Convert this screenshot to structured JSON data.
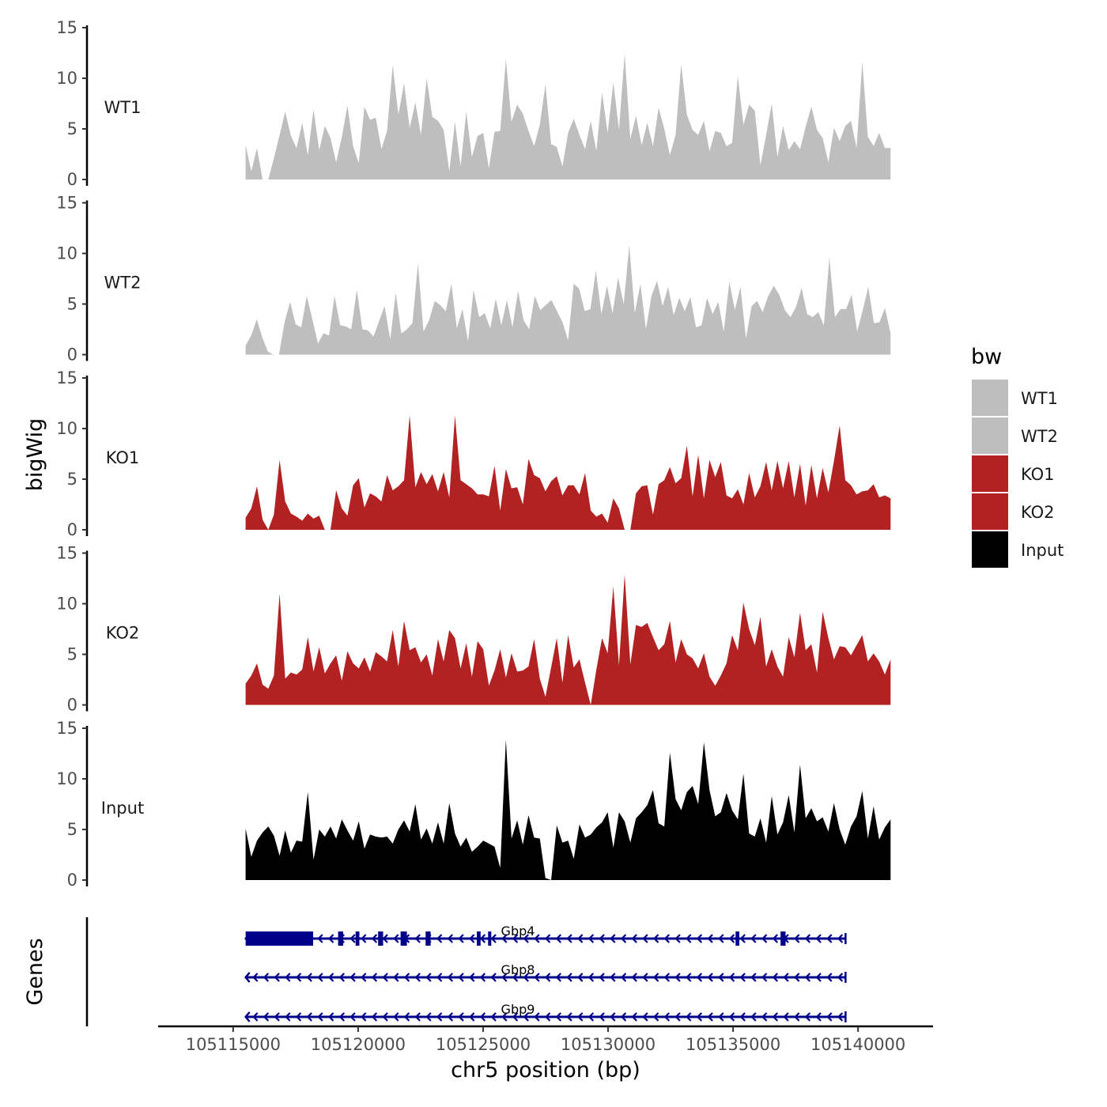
{
  "chart_data": {
    "type": "area",
    "x": {
      "title": "chr5 position (bp)",
      "range": [
        105112000,
        105143000
      ],
      "ticks": [
        105115000,
        105120000,
        105125000,
        105130000,
        105135000,
        105140000
      ],
      "tick_labels": [
        "105115000",
        "105120000",
        "105125000",
        "105130000",
        "105135000",
        "105140000"
      ]
    },
    "y": {
      "title": "bigWig",
      "range": [
        0,
        15
      ],
      "ticks": [
        0,
        5,
        10,
        15
      ],
      "tick_labels": [
        "0",
        "5",
        "10",
        "15"
      ]
    },
    "tracks": [
      {
        "name": "WT1",
        "color": "#bebebe",
        "start": 105115500,
        "end": 105141300,
        "values": [
          3.4,
          0.8,
          3.1,
          0,
          0,
          2.1,
          4.4,
          6.7,
          4.3,
          3.1,
          5.6,
          2.4,
          6.9,
          2.9,
          5.3,
          4.1,
          1.7,
          4.2,
          7.3,
          3.3,
          1.6,
          7.2,
          5.9,
          6.1,
          3.0,
          4.8,
          11.3,
          6.4,
          9.5,
          5.1,
          7.6,
          4.4,
          10.0,
          6.2,
          5.8,
          4.9,
          0.8,
          5.7,
          1.3,
          6.7,
          2.2,
          4.3,
          4.6,
          1.1,
          4.7,
          4.8,
          11.9,
          5.7,
          7.4,
          6.5,
          4.8,
          3.3,
          5.4,
          9.4,
          3.5,
          3.2,
          1.3,
          4.6,
          6.0,
          4.4,
          3.0,
          5.8,
          2.8,
          8.6,
          4.6,
          9.6,
          4.9,
          12.4,
          4.0,
          6.3,
          3.4,
          5.6,
          3.3,
          7.1,
          5.0,
          2.4,
          4.4,
          11.4,
          6.4,
          4.9,
          4.4,
          5.8,
          2.8,
          4.8,
          4.6,
          3.3,
          3.6,
          10.2,
          5.4,
          7.4,
          6.8,
          1.4,
          4.4,
          7.5,
          2.2,
          5.3,
          2.9,
          3.8,
          3.0,
          5.2,
          7.2,
          4.9,
          4.1,
          1.7,
          5.1,
          3.8,
          5.3,
          5.8,
          3.1,
          11.6,
          4.2,
          3.3,
          4.6,
          3.1,
          3.1
        ]
      },
      {
        "name": "WT2",
        "color": "#bebebe",
        "start": 105115500,
        "end": 105141300,
        "values": [
          0.9,
          1.9,
          3.5,
          1.7,
          0.3,
          0,
          0,
          3.2,
          5.2,
          3.0,
          2.7,
          5.8,
          3.5,
          1.1,
          2.1,
          1.9,
          5.8,
          2.9,
          2.8,
          2.5,
          6.4,
          2.5,
          2.4,
          1.8,
          3.3,
          4.8,
          1.5,
          6.1,
          2.1,
          2.5,
          3.1,
          9.0,
          2.3,
          3.4,
          5.3,
          4.9,
          4.3,
          7.0,
          2.6,
          4.5,
          1.3,
          6.4,
          3.7,
          4.1,
          2.6,
          5.5,
          2.9,
          5.4,
          2.7,
          6.3,
          3.4,
          2.5,
          5.8,
          4.4,
          4.9,
          5.4,
          4.3,
          3.2,
          1.4,
          7.0,
          6.5,
          4.3,
          4.5,
          8.3,
          4.0,
          6.8,
          4.1,
          7.6,
          5.0,
          10.8,
          4.1,
          7.0,
          2.5,
          5.8,
          7.3,
          4.8,
          6.7,
          3.9,
          5.6,
          4.3,
          5.7,
          2.7,
          2.9,
          5.6,
          4.0,
          5.2,
          2.3,
          7.2,
          4.4,
          6.7,
          1.6,
          4.8,
          5.3,
          4.2,
          5.8,
          6.8,
          5.9,
          4.4,
          3.7,
          4.7,
          6.6,
          4.0,
          3.7,
          4.2,
          2.9,
          9.6,
          3.7,
          4.5,
          4.5,
          5.9,
          2.3,
          4.4,
          6.7,
          3.1,
          3.2,
          4.6,
          2.1
        ]
      },
      {
        "name": "KO1",
        "color": "#b22222",
        "start": 105115500,
        "end": 105141300,
        "values": [
          1.2,
          2.1,
          4.3,
          1.0,
          0,
          1.5,
          6.9,
          2.8,
          1.6,
          1.3,
          0.9,
          1.6,
          1.1,
          1.4,
          0,
          0,
          3.9,
          2.1,
          1.4,
          4.4,
          5.1,
          2.2,
          3.6,
          3.3,
          2.8,
          5.4,
          3.9,
          4.3,
          4.9,
          11.3,
          4.2,
          5.7,
          4.5,
          5.5,
          3.8,
          5.7,
          3.2,
          11.3,
          4.9,
          4.5,
          4.1,
          3.5,
          3.5,
          3.3,
          6.3,
          1.9,
          6.0,
          4.1,
          4.2,
          2.5,
          7.0,
          5.4,
          5.1,
          3.8,
          4.8,
          5.3,
          3.4,
          4.4,
          4.4,
          3.5,
          5.6,
          1.9,
          1.3,
          1.6,
          0.7,
          3.1,
          2.1,
          0,
          0,
          3.6,
          4.3,
          4.4,
          1.5,
          4.5,
          4.9,
          6.2,
          4.6,
          5.1,
          8.3,
          3.3,
          7.4,
          3.1,
          6.9,
          5.2,
          6.7,
          3.4,
          3.1,
          4.0,
          2.5,
          5.6,
          3.2,
          4.3,
          6.7,
          3.9,
          6.8,
          4.1,
          6.8,
          3.2,
          6.5,
          2.4,
          6.4,
          3.1,
          6.1,
          3.7,
          6.8,
          10.3,
          4.9,
          4.4,
          3.5,
          3.8,
          3.9,
          4.5,
          3.2,
          3.4,
          3.1
        ]
      },
      {
        "name": "KO2",
        "color": "#b22222",
        "start": 105115500,
        "end": 105141300,
        "values": [
          2.1,
          2.9,
          4.1,
          2.0,
          1.6,
          2.9,
          11.0,
          2.6,
          3.2,
          3.0,
          3.5,
          6.7,
          3.3,
          5.7,
          3.1,
          4.1,
          4.9,
          2.4,
          5.3,
          4.1,
          3.6,
          4.7,
          3.3,
          5.2,
          4.8,
          4.3,
          7.4,
          3.8,
          8.3,
          5.4,
          5.7,
          4.2,
          5.0,
          2.9,
          6.5,
          4.3,
          7.4,
          6.6,
          3.6,
          6.1,
          2.8,
          6.3,
          5.5,
          1.9,
          3.4,
          5.5,
          2.7,
          5.1,
          3.3,
          3.4,
          3.8,
          6.5,
          2.6,
          0.8,
          3.7,
          6.6,
          2.2,
          6.9,
          3.7,
          4.5,
          2.2,
          0,
          3.5,
          6.6,
          5.1,
          11.7,
          3.9,
          12.9,
          4.0,
          7.9,
          7.7,
          8.1,
          6.7,
          5.4,
          6.0,
          8.3,
          4.2,
          6.5,
          5.0,
          4.6,
          3.6,
          5.1,
          2.8,
          1.9,
          2.9,
          4.1,
          6.9,
          5.4,
          10.1,
          7.5,
          5.9,
          8.7,
          3.8,
          5.5,
          3.8,
          2.8,
          6.7,
          4.7,
          9.1,
          5.4,
          6.0,
          3.2,
          9.2,
          6.6,
          4.5,
          5.8,
          5.7,
          4.9,
          5.9,
          6.9,
          4.3,
          5.1,
          4.3,
          3.0,
          4.5
        ]
      },
      {
        "name": "Input",
        "color": "#000000",
        "start": 105115500,
        "end": 105141300,
        "values": [
          5.1,
          2.3,
          3.9,
          4.7,
          5.3,
          4.4,
          2.4,
          4.9,
          2.7,
          3.9,
          3.8,
          8.7,
          2.0,
          5.0,
          4.3,
          5.3,
          4.1,
          6.0,
          4.9,
          3.9,
          5.8,
          3.1,
          4.5,
          4.3,
          4.2,
          4.3,
          3.6,
          5.0,
          5.9,
          4.8,
          7.5,
          4.0,
          5.1,
          3.6,
          5.7,
          3.6,
          7.6,
          4.6,
          3.3,
          4.2,
          2.8,
          3.3,
          3.9,
          3.6,
          3.3,
          1.2,
          13.9,
          4.1,
          5.9,
          3.5,
          6.4,
          4.2,
          4.1,
          0.2,
          0,
          5.4,
          3.7,
          3.9,
          2.1,
          5.5,
          4.2,
          4.5,
          5.2,
          5.7,
          6.7,
          3.2,
          6.7,
          5.8,
          3.7,
          6.1,
          6.7,
          7.4,
          8.9,
          5.6,
          5.3,
          12.6,
          8.0,
          6.9,
          8.7,
          9.3,
          7.5,
          13.6,
          8.9,
          6.3,
          6.7,
          8.6,
          6.9,
          6.0,
          10.5,
          4.6,
          4.3,
          6.1,
          3.7,
          8.3,
          4.5,
          5.7,
          8.4,
          4.7,
          11.4,
          6.1,
          7.1,
          5.8,
          6.2,
          4.8,
          7.6,
          5.0,
          3.5,
          5.3,
          6.3,
          8.8,
          4.1,
          7.3,
          4.0,
          5.2,
          6.0
        ]
      }
    ],
    "genes": {
      "title": "Genes",
      "strand": "-",
      "items": [
        {
          "name": "Gbp4",
          "start": 105115500,
          "end": 105139500,
          "exons": [
            [
              105115500,
              105118200
            ],
            [
              105119200,
              105119400
            ],
            [
              105119900,
              105120050
            ],
            [
              105120800,
              105121000
            ],
            [
              105121700,
              105121950
            ],
            [
              105122700,
              105122900
            ],
            [
              105124750,
              105124900
            ],
            [
              105125200,
              105125300
            ],
            [
              105135100,
              105135250
            ],
            [
              105136900,
              105137100
            ]
          ]
        },
        {
          "name": "Gbp8",
          "start": 105115500,
          "end": 105139500,
          "exons": []
        },
        {
          "name": "Gbp9",
          "start": 105115500,
          "end": 105139500,
          "exons": []
        }
      ]
    },
    "legend": {
      "title": "bw",
      "position": "right",
      "entries": [
        {
          "label": "WT1",
          "color": "#bebebe"
        },
        {
          "label": "WT2",
          "color": "#bebebe"
        },
        {
          "label": "KO1",
          "color": "#b22222"
        },
        {
          "label": "KO2",
          "color": "#b22222"
        },
        {
          "label": "Input",
          "color": "#000000"
        }
      ]
    },
    "gene_color": "#00008b"
  }
}
